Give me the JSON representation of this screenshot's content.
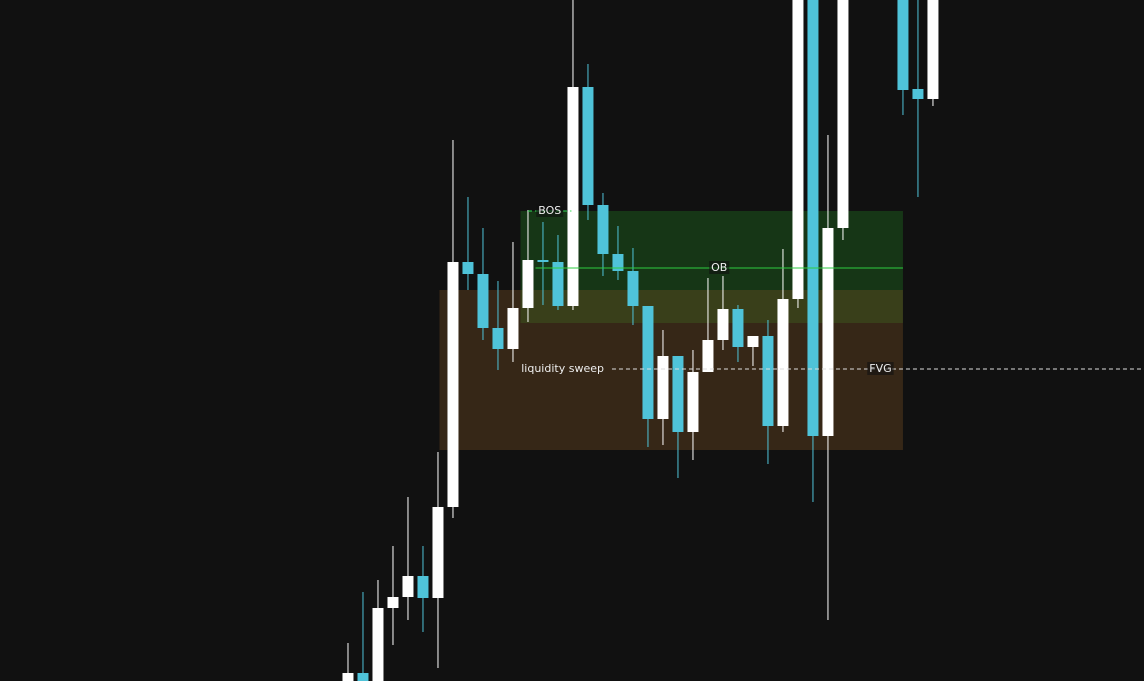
{
  "chart_data": {
    "type": "candlestick",
    "xlim": [
      -23.2,
      53.07
    ],
    "ylim": [
      0,
      681
    ],
    "up_color": "#ffffff",
    "down_color": "#4fc3d9",
    "x": [
      0,
      1,
      2,
      3,
      4,
      5,
      6,
      7,
      8,
      9,
      10,
      11,
      12,
      13,
      14,
      15,
      16,
      17,
      18,
      19,
      20,
      21,
      22,
      23,
      24,
      25,
      26,
      27,
      28,
      29,
      30,
      31,
      32,
      33,
      37,
      38,
      39
    ],
    "open": [
      0,
      8,
      0,
      73,
      84,
      105,
      83,
      174,
      419,
      407,
      353,
      332,
      373,
      421,
      419,
      375,
      594,
      476,
      427,
      410,
      375,
      262,
      325,
      249,
      309,
      341,
      372,
      334,
      345,
      255,
      382,
      681,
      245,
      453,
      681,
      592,
      582
    ],
    "high": [
      38,
      89,
      101,
      135,
      184,
      135,
      229,
      541,
      484,
      453,
      400,
      439,
      471,
      459,
      446,
      681,
      617,
      488,
      455,
      433,
      375,
      351,
      325,
      331,
      403,
      405,
      376,
      345,
      361,
      432,
      681,
      681,
      546,
      681,
      681,
      681,
      681
    ],
    "low": [
      0,
      0,
      0,
      36,
      61,
      49,
      13,
      163,
      391,
      341,
      311,
      319,
      359,
      376,
      371,
      371,
      461,
      405,
      401,
      356,
      234,
      236,
      203,
      221,
      309,
      331,
      319,
      315,
      217,
      249,
      373,
      179,
      61,
      441,
      566,
      484,
      575
    ],
    "close": [
      8,
      0,
      73,
      84,
      105,
      83,
      174,
      419,
      407,
      353,
      332,
      373,
      421,
      419,
      375,
      594,
      476,
      427,
      410,
      375,
      262,
      325,
      249,
      309,
      341,
      372,
      334,
      345,
      255,
      382,
      681,
      245,
      453,
      681,
      591,
      582,
      681
    ],
    "zones": [
      {
        "x0": 11.5,
        "x1": 37,
        "low": 358,
        "high": 470,
        "color": "#1f7a1f"
      },
      {
        "x0": 6.1,
        "x1": 37,
        "low": 231,
        "high": 391,
        "color": "#7a4f22"
      }
    ],
    "levels": [
      {
        "text": "BOS",
        "y": 470,
        "x0": 12,
        "x1": 14.9,
        "color": "#33dd55",
        "dashed": true,
        "label_pos": "center"
      },
      {
        "text": "OB",
        "y": 413,
        "x0": 12.5,
        "x1": 37,
        "color": "#2ecc40",
        "dashed": false,
        "label_pos": "center"
      },
      {
        "text": "liquidity sweep",
        "y": 312,
        "x0": 17.6,
        "x1": 53.07,
        "color": "#dddddd",
        "dashed": true,
        "label_pos": "left"
      },
      {
        "text": "FVG",
        "y": 312,
        "x0": 35.5,
        "x1": 35.5,
        "color": "#dddddd",
        "dashed": true,
        "label_pos": "center"
      }
    ]
  }
}
